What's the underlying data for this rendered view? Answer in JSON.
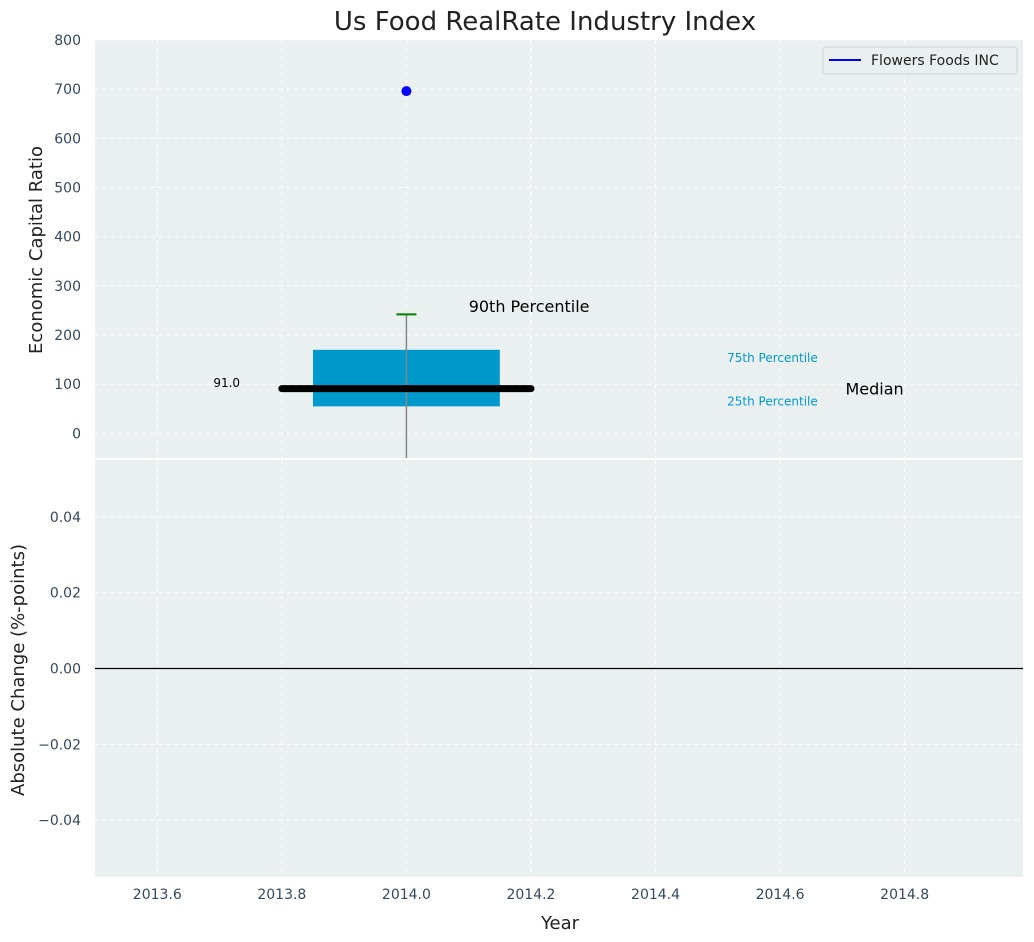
{
  "chart_data": {
    "type": "box-plot with annotations",
    "title": "Us Food RealRate Industry Index",
    "xlabel": "Year",
    "x_ticks": [
      "2013.6",
      "2013.8",
      "2014.0",
      "2014.2",
      "2014.4",
      "2014.6",
      "2014.8"
    ],
    "xlim": [
      2013.5,
      2014.99
    ],
    "legend": {
      "placement": "top-right",
      "entries": [
        {
          "label": "Flowers Foods INC",
          "color": "#0000ff"
        }
      ]
    },
    "top_panel": {
      "ylabel": "Economic Capital Ratio",
      "ylim": [
        -50,
        800
      ],
      "y_ticks": [
        "0",
        "100",
        "200",
        "300",
        "400",
        "500",
        "600",
        "700",
        "800"
      ],
      "box": {
        "x": 2014.0,
        "x_left": 2013.85,
        "x_right": 2014.15,
        "q1": 55,
        "q3": 170,
        "color": "#0099cc"
      },
      "median": {
        "value": 91,
        "x_start": 2013.8,
        "x_end": 2014.2,
        "label": "91.0",
        "label_x": 2013.69,
        "label_y": 103
      },
      "whisker": {
        "x": 2014.0,
        "top": 242,
        "bottom": -50,
        "cap_color": "#008000"
      },
      "company_point": {
        "x": 2014.0,
        "value": 696,
        "color": "#0000ff"
      },
      "annotations": [
        {
          "text": "90th Percentile",
          "x": 2014.1,
          "y": 258,
          "color": "#000000",
          "size": 16
        },
        {
          "text": "75th Percentile",
          "x": 2014.515,
          "y": 153,
          "color": "#0099cc",
          "size": 12
        },
        {
          "text": "25th Percentile",
          "x": 2014.515,
          "y": 65,
          "color": "#0099cc",
          "size": 12
        },
        {
          "text": "Median",
          "x": 2014.705,
          "y": 90,
          "color": "#000000",
          "size": 16
        }
      ]
    },
    "bottom_panel": {
      "ylabel": "Absolute Change (%-points)",
      "ylim": [
        -0.055,
        0.055
      ],
      "y_ticks": [
        "0.04",
        "0.02",
        "0.00",
        "−0.02",
        "−0.04"
      ],
      "y_tick_values": [
        0.04,
        0.02,
        0.0,
        -0.02,
        -0.04
      ],
      "zero_line": 0.0
    }
  }
}
